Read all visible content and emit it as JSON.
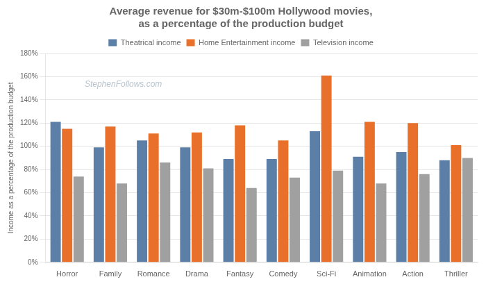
{
  "chart_data": {
    "type": "bar",
    "title": "Average revenue for $30m-$100m Hollywood movies,\nas a percentage of the production budget",
    "ylabel": "Income as a percentage of the production budget",
    "categories": [
      "Horror",
      "Family",
      "Romance",
      "Drama",
      "Fantasy",
      "Comedy",
      "Sci-Fi",
      "Animation",
      "Action",
      "Thriller"
    ],
    "series": [
      {
        "name": "Theatrical income",
        "color": "#5b7fa6",
        "values": [
          121,
          99,
          105,
          99,
          89,
          89,
          113,
          91,
          95,
          88
        ]
      },
      {
        "name": "Home Entertainment income",
        "color": "#e8702a",
        "values": [
          115,
          117,
          111,
          112,
          118,
          105,
          161,
          121,
          120,
          101
        ]
      },
      {
        "name": "Television income",
        "color": "#a0a0a0",
        "values": [
          74,
          68,
          86,
          81,
          64,
          73,
          79,
          68,
          76,
          90
        ]
      }
    ],
    "ylim": [
      0,
      180
    ],
    "yticks": [
      {
        "value": 0,
        "label": "0%"
      },
      {
        "value": 20,
        "label": "20%"
      },
      {
        "value": 40,
        "label": "40%"
      },
      {
        "value": 60,
        "label": "60%"
      },
      {
        "value": 80,
        "label": "80%"
      },
      {
        "value": 100,
        "label": "100%"
      },
      {
        "value": 120,
        "label": "120%"
      },
      {
        "value": 140,
        "label": "140%"
      },
      {
        "value": 160,
        "label": "160%"
      },
      {
        "value": 180,
        "label": "180%"
      }
    ],
    "grid": true,
    "legend": "top",
    "annotations": [
      {
        "text": "StephenFollows.com",
        "color": "#b8c4ce"
      }
    ]
  }
}
